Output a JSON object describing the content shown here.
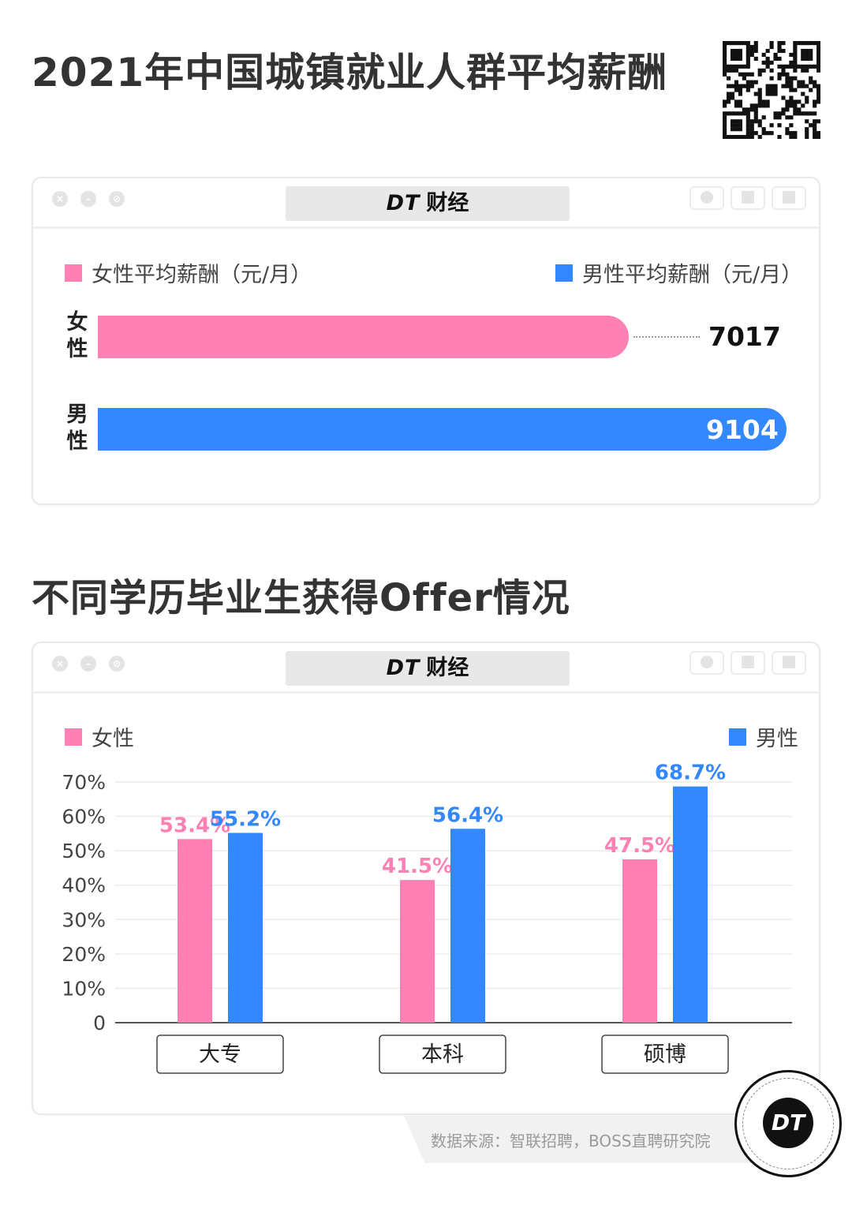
{
  "section1": {
    "title": "2021年中国城镇就业人群平均薪酬",
    "brand_tab": {
      "dt": "DT",
      "name": "财经"
    },
    "legend": [
      {
        "label": "女性平均薪酬（元/月）",
        "color": "#ff80b3"
      },
      {
        "label": "男性平均薪酬（元/月）",
        "color": "#3388ff"
      }
    ],
    "chart_data": {
      "type": "bar",
      "orientation": "horizontal",
      "categories": [
        "女性",
        "男性"
      ],
      "values": [
        7017,
        9104
      ],
      "colors": [
        "#ff80b3",
        "#3388ff"
      ],
      "labels": [
        "女\n性",
        "男\n性"
      ]
    }
  },
  "section2": {
    "title": "不同学历毕业生获得Offer情况",
    "brand_tab": {
      "dt": "DT",
      "name": "财经"
    },
    "legend": [
      {
        "label": "女性",
        "color": "#ff80b3"
      },
      {
        "label": "男性",
        "color": "#3388ff"
      }
    ],
    "chart_data": {
      "type": "bar",
      "categories": [
        "大专",
        "本科",
        "硕博"
      ],
      "series": [
        {
          "name": "女性",
          "values": [
            53.4,
            41.5,
            47.5
          ],
          "color": "#ff80b3"
        },
        {
          "name": "男性",
          "values": [
            55.2,
            56.4,
            68.7
          ],
          "color": "#3388ff"
        }
      ],
      "ylim": [
        0,
        70
      ],
      "yticks": [
        0,
        10,
        20,
        30,
        40,
        50,
        60,
        70
      ],
      "ytick_labels": [
        "0",
        "10%",
        "20%",
        "30%",
        "40%",
        "50%",
        "60%",
        "70%"
      ],
      "value_labels": [
        [
          "53.4%",
          "41.5%",
          "47.5%"
        ],
        [
          "55.2%",
          "56.4%",
          "68.7%"
        ]
      ],
      "grid": true
    }
  },
  "footer": {
    "source": "数据来源：智联招聘，BOSS直聘研究院",
    "badge": "DT"
  },
  "colors": {
    "female": "#ff80b3",
    "male": "#3388ff",
    "title": "#333333"
  }
}
